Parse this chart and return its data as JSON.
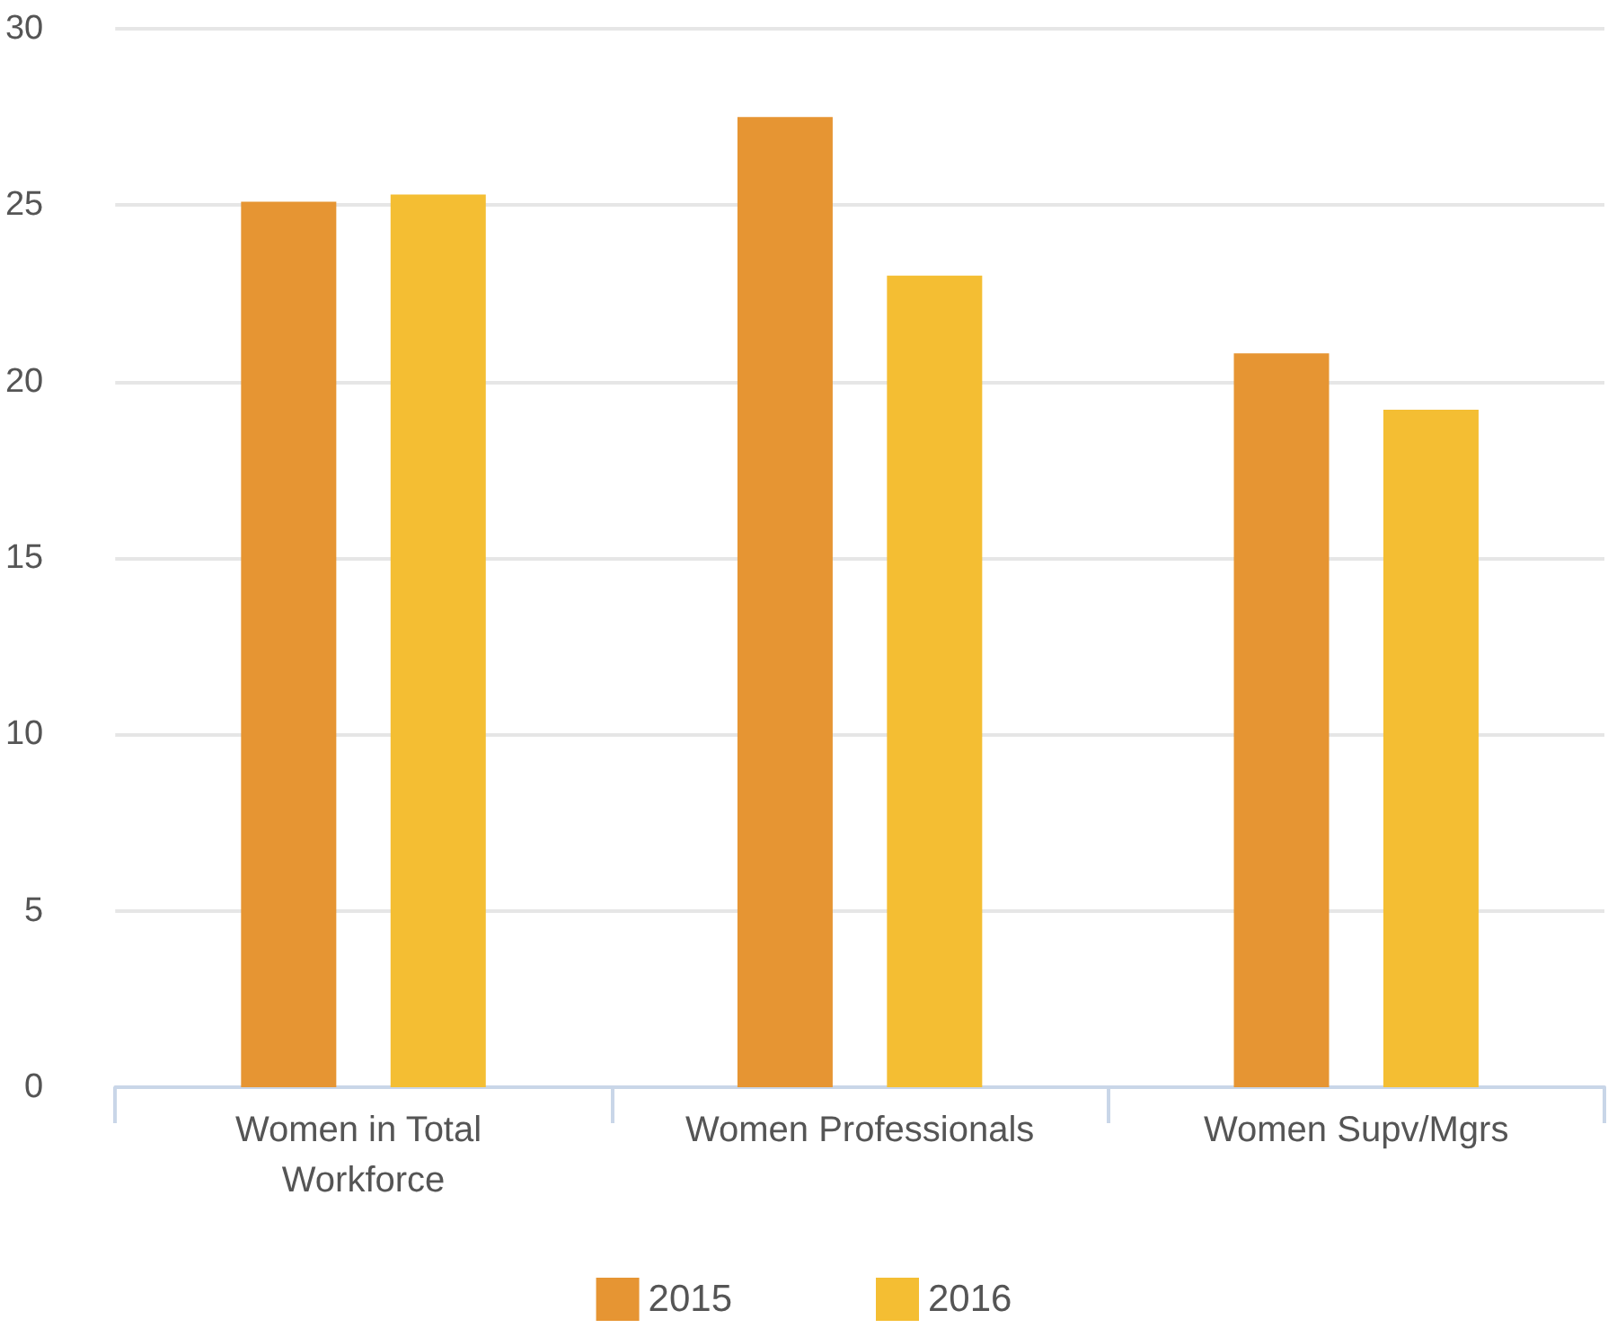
{
  "chart_data": {
    "type": "bar",
    "categories": [
      "Women in Total Workforce",
      "Women Professionals",
      "Women Supv/Mgrs"
    ],
    "series": [
      {
        "name": "2015",
        "color": "#e69533",
        "values": [
          25.1,
          27.5,
          20.8
        ]
      },
      {
        "name": "2016",
        "color": "#f4be33",
        "values": [
          25.3,
          23.0,
          19.2
        ]
      }
    ],
    "ylim": [
      0,
      30
    ],
    "yticks": [
      0,
      5,
      10,
      15,
      20,
      25,
      30
    ],
    "grid": "y",
    "legend": "bottom"
  }
}
